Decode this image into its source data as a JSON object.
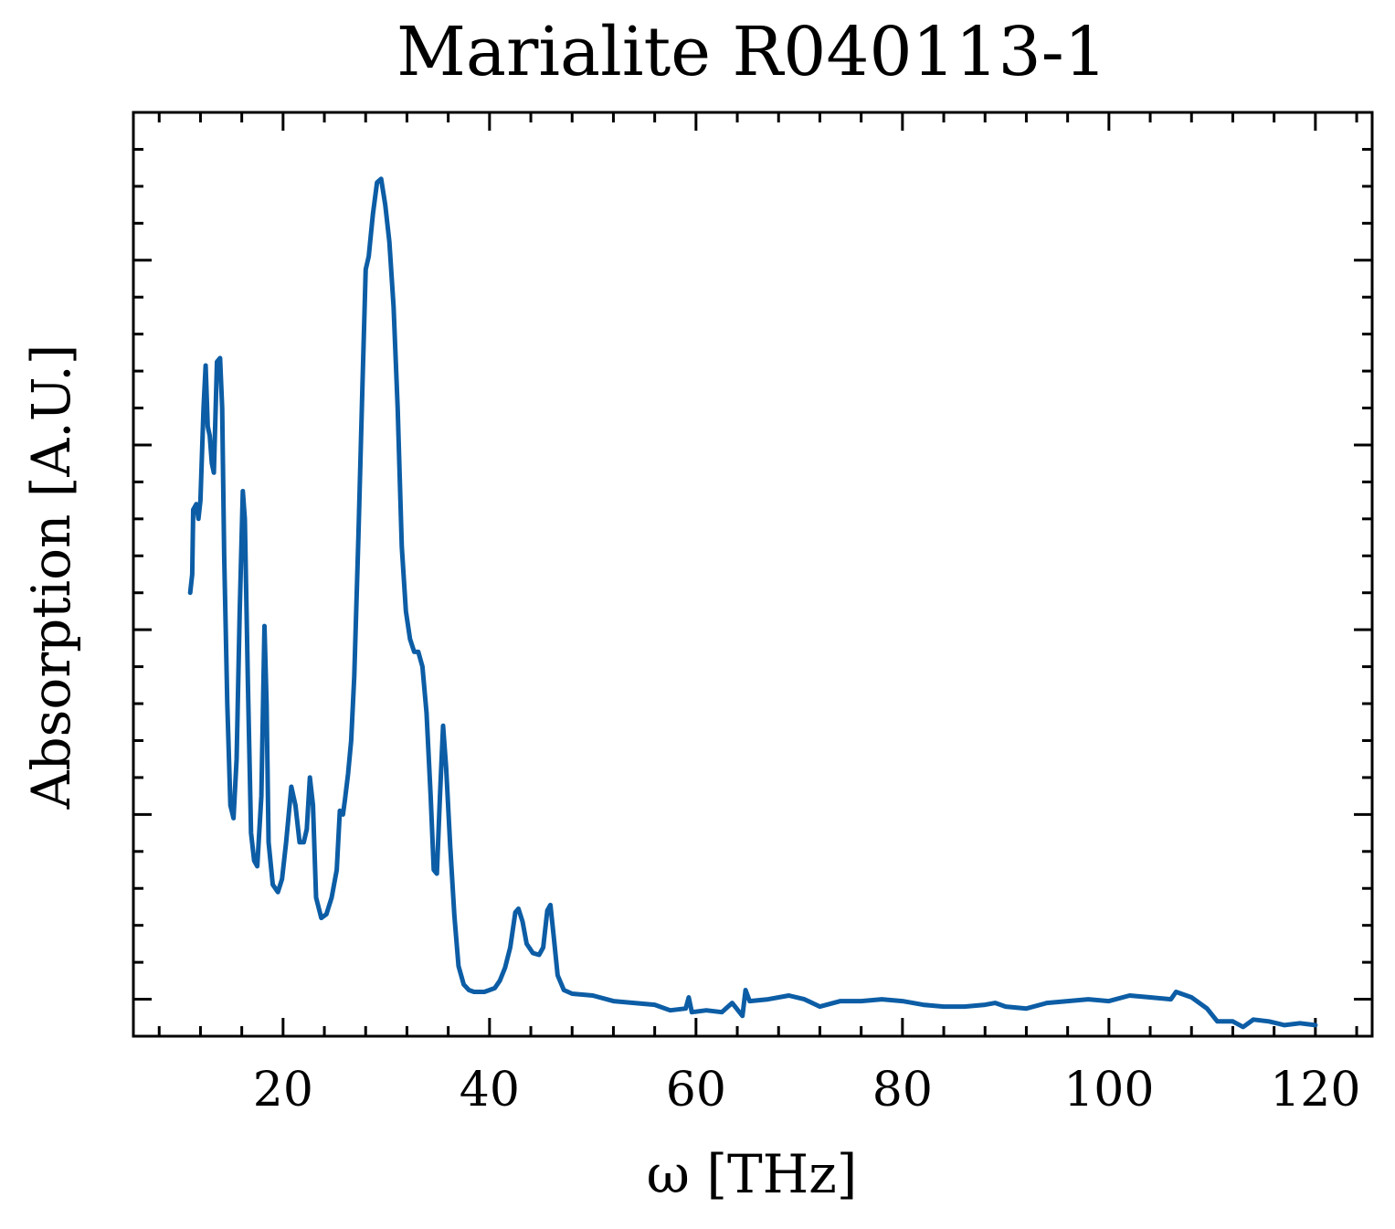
{
  "chart_data": {
    "type": "line",
    "title": "Marialite R040113-1",
    "xlabel": "ω [THz]",
    "ylabel": "Absorption [A.U.]",
    "xlim": [
      5.5,
      125.5
    ],
    "ylim": [
      -0.2,
      4.8
    ],
    "x_ticks": [
      20,
      40,
      60,
      80,
      100,
      120
    ],
    "x_tick_labels": [
      "20",
      "40",
      "60",
      "80",
      "100",
      "120"
    ],
    "y_major_ticks": [
      0,
      1,
      2,
      3,
      4
    ],
    "y_minor_step": 0.2,
    "x_minor_step": 4,
    "y_tick_labels_shown": false,
    "grid": false,
    "legend": "none",
    "colors": {
      "series": "#0C5DA5",
      "axes": "#000000"
    },
    "series": [
      {
        "color": "#0C5DA5",
        "points": [
          [
            11.0,
            2.2
          ],
          [
            11.2,
            2.3
          ],
          [
            11.3,
            2.65
          ],
          [
            11.6,
            2.68
          ],
          [
            11.8,
            2.6
          ],
          [
            12.0,
            2.7
          ],
          [
            12.3,
            3.2
          ],
          [
            12.5,
            3.43
          ],
          [
            12.7,
            3.1
          ],
          [
            12.9,
            3.05
          ],
          [
            13.1,
            2.9
          ],
          [
            13.3,
            2.85
          ],
          [
            13.6,
            3.45
          ],
          [
            13.9,
            3.47
          ],
          [
            14.1,
            3.2
          ],
          [
            14.3,
            2.4
          ],
          [
            14.6,
            1.6
          ],
          [
            14.9,
            1.05
          ],
          [
            15.2,
            0.98
          ],
          [
            15.5,
            1.3
          ],
          [
            15.8,
            2.1
          ],
          [
            16.1,
            2.75
          ],
          [
            16.3,
            2.6
          ],
          [
            16.6,
            1.7
          ],
          [
            16.9,
            0.9
          ],
          [
            17.2,
            0.75
          ],
          [
            17.5,
            0.72
          ],
          [
            17.9,
            1.1
          ],
          [
            18.2,
            2.02
          ],
          [
            18.4,
            1.6
          ],
          [
            18.6,
            0.85
          ],
          [
            19.0,
            0.62
          ],
          [
            19.5,
            0.58
          ],
          [
            19.9,
            0.65
          ],
          [
            20.3,
            0.85
          ],
          [
            20.8,
            1.15
          ],
          [
            21.2,
            1.05
          ],
          [
            21.6,
            0.85
          ],
          [
            22.0,
            0.85
          ],
          [
            22.3,
            0.92
          ],
          [
            22.6,
            1.2
          ],
          [
            22.9,
            1.05
          ],
          [
            23.2,
            0.55
          ],
          [
            23.7,
            0.44
          ],
          [
            24.2,
            0.46
          ],
          [
            24.7,
            0.55
          ],
          [
            25.2,
            0.7
          ],
          [
            25.5,
            1.02
          ],
          [
            25.8,
            1.0
          ],
          [
            26.0,
            1.08
          ],
          [
            26.3,
            1.22
          ],
          [
            26.6,
            1.4
          ],
          [
            26.9,
            1.75
          ],
          [
            27.3,
            2.5
          ],
          [
            27.7,
            3.35
          ],
          [
            28.0,
            3.95
          ],
          [
            28.3,
            4.02
          ],
          [
            28.7,
            4.25
          ],
          [
            29.1,
            4.42
          ],
          [
            29.5,
            4.44
          ],
          [
            29.9,
            4.3
          ],
          [
            30.3,
            4.1
          ],
          [
            30.7,
            3.75
          ],
          [
            31.1,
            3.2
          ],
          [
            31.5,
            2.45
          ],
          [
            31.9,
            2.1
          ],
          [
            32.3,
            1.95
          ],
          [
            32.7,
            1.88
          ],
          [
            33.1,
            1.88
          ],
          [
            33.5,
            1.8
          ],
          [
            33.9,
            1.55
          ],
          [
            34.3,
            1.1
          ],
          [
            34.6,
            0.7
          ],
          [
            34.9,
            0.68
          ],
          [
            35.2,
            1.1
          ],
          [
            35.5,
            1.48
          ],
          [
            35.8,
            1.25
          ],
          [
            36.2,
            0.82
          ],
          [
            36.6,
            0.45
          ],
          [
            37.0,
            0.18
          ],
          [
            37.5,
            0.08
          ],
          [
            38.0,
            0.05
          ],
          [
            38.5,
            0.04
          ],
          [
            39.0,
            0.04
          ],
          [
            39.5,
            0.04
          ],
          [
            40.0,
            0.05
          ],
          [
            40.5,
            0.06
          ],
          [
            41.0,
            0.1
          ],
          [
            41.5,
            0.17
          ],
          [
            42.0,
            0.28
          ],
          [
            42.5,
            0.47
          ],
          [
            42.8,
            0.49
          ],
          [
            43.2,
            0.42
          ],
          [
            43.6,
            0.3
          ],
          [
            44.2,
            0.25
          ],
          [
            44.8,
            0.24
          ],
          [
            45.2,
            0.28
          ],
          [
            45.6,
            0.48
          ],
          [
            45.9,
            0.51
          ],
          [
            46.2,
            0.35
          ],
          [
            46.6,
            0.13
          ],
          [
            47.2,
            0.05
          ],
          [
            48.0,
            0.03
          ],
          [
            50.0,
            0.02
          ],
          [
            52.0,
            -0.01
          ],
          [
            54.0,
            -0.02
          ],
          [
            56.0,
            -0.03
          ],
          [
            57.5,
            -0.06
          ],
          [
            59.0,
            -0.05
          ],
          [
            59.3,
            0.01
          ],
          [
            59.6,
            -0.07
          ],
          [
            61.0,
            -0.06
          ],
          [
            62.5,
            -0.07
          ],
          [
            63.5,
            -0.02
          ],
          [
            64.5,
            -0.09
          ],
          [
            64.8,
            0.05
          ],
          [
            65.2,
            -0.01
          ],
          [
            67.0,
            0.0
          ],
          [
            69.0,
            0.02
          ],
          [
            70.5,
            0.0
          ],
          [
            72.0,
            -0.04
          ],
          [
            74.0,
            -0.01
          ],
          [
            76.0,
            -0.01
          ],
          [
            78.0,
            0.0
          ],
          [
            80.0,
            -0.01
          ],
          [
            82.0,
            -0.03
          ],
          [
            84.0,
            -0.04
          ],
          [
            86.0,
            -0.04
          ],
          [
            88.0,
            -0.03
          ],
          [
            89.0,
            -0.02
          ],
          [
            90.0,
            -0.04
          ],
          [
            92.0,
            -0.05
          ],
          [
            94.0,
            -0.02
          ],
          [
            96.0,
            -0.01
          ],
          [
            98.0,
            0.0
          ],
          [
            100.0,
            -0.01
          ],
          [
            102.0,
            0.02
          ],
          [
            104.0,
            0.01
          ],
          [
            106.0,
            0.0
          ],
          [
            106.5,
            0.04
          ],
          [
            108.0,
            0.01
          ],
          [
            109.5,
            -0.05
          ],
          [
            110.5,
            -0.12
          ],
          [
            112.0,
            -0.12
          ],
          [
            113.0,
            -0.15
          ],
          [
            114.0,
            -0.11
          ],
          [
            115.5,
            -0.12
          ],
          [
            117.0,
            -0.14
          ],
          [
            118.5,
            -0.13
          ],
          [
            120.0,
            -0.14
          ]
        ]
      }
    ]
  }
}
